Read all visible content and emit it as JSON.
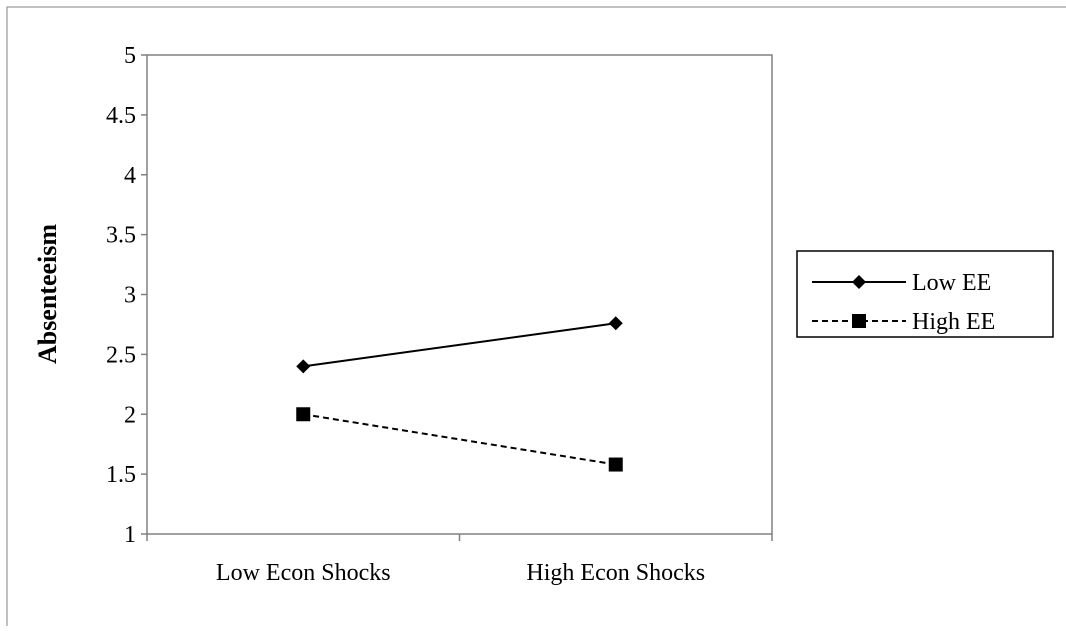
{
  "chart_data": {
    "type": "line",
    "title": "",
    "xlabel": "",
    "ylabel": "Absenteeism",
    "categories": [
      "Low Econ Shocks",
      "High Econ Shocks"
    ],
    "ylim": [
      1,
      5
    ],
    "yticks": [
      "1",
      "1.5",
      "2",
      "2.5",
      "3",
      "3.5",
      "4",
      "4.5",
      "5"
    ],
    "grid": false,
    "legend_position": "right",
    "series": [
      {
        "name": "Low EE",
        "values": [
          2.4,
          2.76
        ],
        "marker": "diamond",
        "line_style": "solid",
        "color": "#000000"
      },
      {
        "name": "High EE",
        "values": [
          2.0,
          1.58
        ],
        "marker": "square",
        "line_style": "dashed",
        "color": "#000000"
      }
    ]
  }
}
